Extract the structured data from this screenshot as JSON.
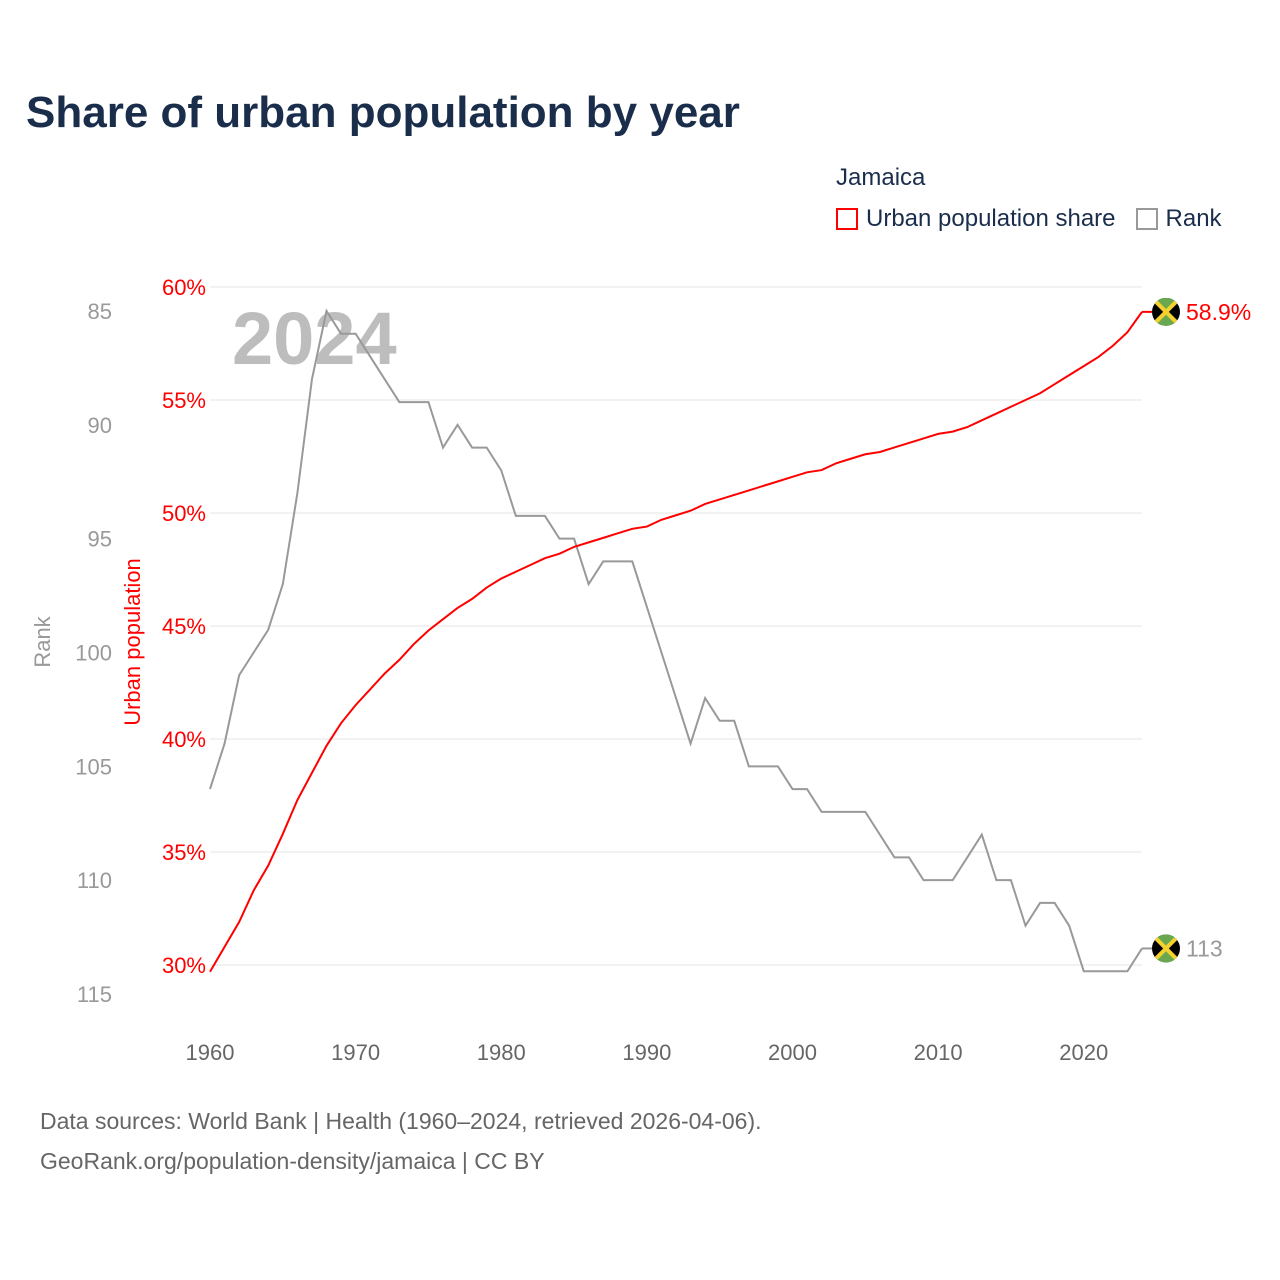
{
  "title": "Share of urban population by year",
  "legend": {
    "title": "Jamaica",
    "items": [
      {
        "label": "Urban population share",
        "color": "#ff0000"
      },
      {
        "label": "Rank",
        "color": "#999999"
      }
    ]
  },
  "watermark_year": "2024",
  "footer": {
    "line1": "Data sources: World Bank | Health (1960–2024, retrieved 2026-04-06).",
    "line2": "GeoRank.org/population-density/jamaica | CC BY"
  },
  "chart_data": {
    "type": "line",
    "title": "Share of urban population by year",
    "xlabel": "",
    "ylabel_left_inner": "Urban population",
    "ylabel_left_outer": "Rank",
    "xlim": [
      1960,
      2024
    ],
    "x_ticks": [
      "1960",
      "1970",
      "1980",
      "1990",
      "2000",
      "2010",
      "2020"
    ],
    "urban_ticks": [
      "60%",
      "55%",
      "50%",
      "45%",
      "40%",
      "35%",
      "30%"
    ],
    "urban_ylim": [
      30,
      60
    ],
    "rank_ticks": [
      "85",
      "90",
      "95",
      "100",
      "105",
      "110",
      "115"
    ],
    "rank_ylim": [
      85,
      115
    ],
    "rank_reversed": true,
    "grid": true,
    "end_labels": {
      "urban": "58.9%",
      "rank": "113"
    },
    "x": [
      1960,
      1961,
      1962,
      1963,
      1964,
      1965,
      1966,
      1967,
      1968,
      1969,
      1970,
      1971,
      1972,
      1973,
      1974,
      1975,
      1976,
      1977,
      1978,
      1979,
      1980,
      1981,
      1982,
      1983,
      1984,
      1985,
      1986,
      1987,
      1988,
      1989,
      1990,
      1991,
      1992,
      1993,
      1994,
      1995,
      1996,
      1997,
      1998,
      1999,
      2000,
      2001,
      2002,
      2003,
      2004,
      2005,
      2006,
      2007,
      2008,
      2009,
      2010,
      2011,
      2012,
      2013,
      2014,
      2015,
      2016,
      2017,
      2018,
      2019,
      2020,
      2021,
      2022,
      2023,
      2024
    ],
    "series": [
      {
        "name": "Urban population share",
        "color": "#ff0000",
        "values": [
          29.7,
          30.8,
          31.9,
          33.3,
          34.4,
          35.8,
          37.3,
          38.5,
          39.7,
          40.7,
          41.5,
          42.2,
          42.9,
          43.5,
          44.2,
          44.8,
          45.3,
          45.8,
          46.2,
          46.7,
          47.1,
          47.4,
          47.7,
          48.0,
          48.2,
          48.5,
          48.7,
          48.9,
          49.1,
          49.3,
          49.4,
          49.7,
          49.9,
          50.1,
          50.4,
          50.6,
          50.8,
          51.0,
          51.2,
          51.4,
          51.6,
          51.8,
          51.9,
          52.2,
          52.4,
          52.6,
          52.7,
          52.9,
          53.1,
          53.3,
          53.5,
          53.6,
          53.8,
          54.1,
          54.4,
          54.7,
          55.0,
          55.3,
          55.7,
          56.1,
          56.5,
          56.9,
          57.4,
          58.0,
          58.9
        ]
      },
      {
        "name": "Rank",
        "color": "#999999",
        "values": [
          106,
          104,
          101,
          100,
          99,
          97,
          93,
          88,
          85,
          86,
          86,
          87,
          88,
          89,
          89,
          89,
          91,
          90,
          91,
          91,
          92,
          94,
          94,
          94,
          95,
          95,
          97,
          96,
          96,
          96,
          98,
          100,
          102,
          104,
          102,
          103,
          103,
          105,
          105,
          105,
          106,
          106,
          107,
          107,
          107,
          107,
          108,
          109,
          109,
          110,
          110,
          110,
          109,
          108,
          110,
          110,
          112,
          111,
          111,
          112,
          114,
          114,
          114,
          114,
          113
        ]
      }
    ]
  }
}
